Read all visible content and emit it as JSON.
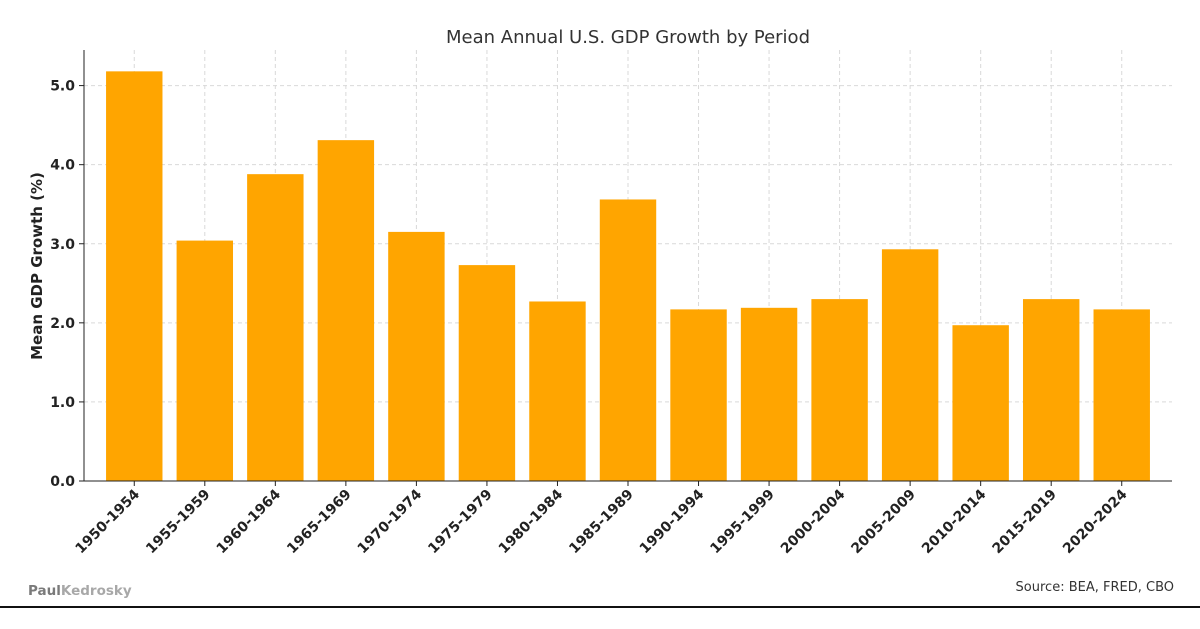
{
  "chart_data": {
    "type": "bar",
    "title": "Mean Annual U.S. GDP Growth by Period",
    "xlabel": "",
    "ylabel": "Mean GDP Growth (%)",
    "categories": [
      "1950-1954",
      "1955-1959",
      "1960-1964",
      "1965-1969",
      "1970-1974",
      "1975-1979",
      "1980-1984",
      "1985-1989",
      "1990-1994",
      "1995-1999",
      "2000-2004",
      "2005-2009",
      "2010-2014",
      "2015-2019",
      "2020-2024"
    ],
    "values": [
      5.18,
      3.04,
      3.88,
      4.31,
      3.15,
      2.73,
      2.27,
      3.56,
      2.17,
      2.19,
      2.3,
      2.93,
      1.97,
      2.3,
      2.17
    ],
    "yticks": [
      "0.0",
      "1.0",
      "2.0",
      "3.0",
      "4.0",
      "5.0"
    ],
    "ylim": [
      0,
      5.45
    ],
    "grid": true,
    "bar_color": "#FFA500"
  },
  "footer": {
    "brand_first": "Paul",
    "brand_last": "Kedrosky",
    "source": "Source: BEA, FRED, CBO"
  }
}
